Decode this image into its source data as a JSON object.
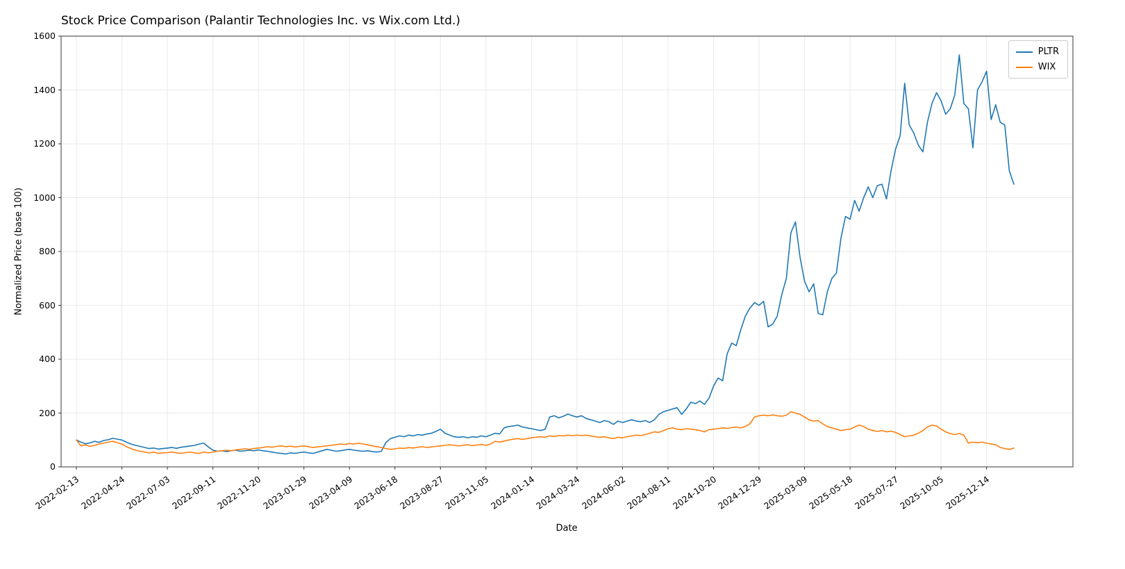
{
  "title": "Stock Price Comparison (Palantir Technologies Inc. vs Wix.com Ltd.)",
  "xlabel": "Date",
  "ylabel": "Normalized Price (base 100)",
  "legend": [
    {
      "label": "PLTR",
      "color": "#1f77b4"
    },
    {
      "label": "WIX",
      "color": "#ff7f0e"
    }
  ],
  "chart_data": {
    "type": "line",
    "title": "Stock Price Comparison (Palantir Technologies Inc. vs Wix.com Ltd.)",
    "xlabel": "Date",
    "ylabel": "Normalized Price (base 100)",
    "ylim": [
      0,
      1600
    ],
    "y_ticks": [
      0,
      200,
      400,
      600,
      800,
      1000,
      1200,
      1400,
      1600
    ],
    "grid": true,
    "legend_position": "upper right",
    "x_unit": "weekly samples, one point per week starting 2022-02-13",
    "samples_per_tick": 10,
    "x_tick_labels": [
      "2022-02-13",
      "2022-04-24",
      "2022-07-03",
      "2022-09-11",
      "2022-11-20",
      "2023-01-29",
      "2023-04-09",
      "2023-06-18",
      "2023-08-27",
      "2023-11-05",
      "2024-01-14",
      "2024-03-24",
      "2024-06-02",
      "2024-08-11",
      "2024-10-20",
      "2024-12-29",
      "2025-03-09",
      "2025-05-18",
      "2025-07-27",
      "2025-10-05",
      "2025-12-14"
    ],
    "series": [
      {
        "name": "PLTR",
        "color": "#1f77b4",
        "values": [
          100,
          92,
          86,
          89,
          95,
          91,
          98,
          101,
          106,
          103,
          100,
          92,
          85,
          80,
          76,
          72,
          68,
          70,
          66,
          68,
          70,
          72,
          69,
          73,
          75,
          78,
          80,
          85,
          88,
          74,
          62,
          58,
          60,
          57,
          60,
          62,
          58,
          60,
          62,
          60,
          63,
          60,
          58,
          55,
          52,
          50,
          48,
          52,
          50,
          53,
          55,
          52,
          50,
          55,
          60,
          65,
          62,
          58,
          60,
          63,
          65,
          62,
          60,
          58,
          60,
          57,
          55,
          58,
          90,
          105,
          110,
          115,
          112,
          118,
          115,
          120,
          118,
          122,
          125,
          132,
          140,
          125,
          118,
          112,
          110,
          112,
          108,
          112,
          110,
          115,
          112,
          118,
          125,
          122,
          145,
          150,
          152,
          155,
          148,
          145,
          142,
          138,
          135,
          140,
          185,
          190,
          182,
          188,
          196,
          190,
          185,
          190,
          180,
          175,
          170,
          165,
          172,
          168,
          158,
          170,
          165,
          170,
          175,
          170,
          168,
          172,
          165,
          175,
          195,
          205,
          210,
          215,
          220,
          195,
          215,
          240,
          235,
          245,
          232,
          255,
          300,
          330,
          320,
          420,
          460,
          450,
          510,
          560,
          590,
          610,
          600,
          615,
          520,
          530,
          560,
          640,
          700,
          870,
          910,
          780,
          690,
          650,
          680,
          570,
          565,
          650,
          700,
          720,
          850,
          930,
          920,
          990,
          950,
          1000,
          1040,
          1000,
          1045,
          1050,
          995,
          1100,
          1180,
          1230,
          1425,
          1270,
          1240,
          1195,
          1170,
          1280,
          1350,
          1390,
          1360,
          1310,
          1330,
          1380,
          1530,
          1350,
          1330,
          1185,
          1400,
          1430,
          1470,
          1290,
          1345,
          1280,
          1270,
          1100,
          1050
        ]
      },
      {
        "name": "WIX",
        "color": "#ff7f0e",
        "values": [
          100,
          78,
          82,
          76,
          80,
          85,
          88,
          92,
          95,
          90,
          85,
          75,
          68,
          62,
          58,
          55,
          52,
          55,
          50,
          52,
          53,
          55,
          52,
          50,
          53,
          55,
          52,
          50,
          55,
          52,
          55,
          58,
          60,
          62,
          60,
          63,
          65,
          67,
          65,
          68,
          70,
          72,
          75,
          73,
          76,
          78,
          75,
          77,
          74,
          76,
          78,
          75,
          72,
          74,
          76,
          78,
          80,
          82,
          85,
          83,
          87,
          85,
          88,
          85,
          82,
          78,
          75,
          72,
          68,
          65,
          67,
          70,
          68,
          72,
          70,
          73,
          75,
          72,
          74,
          76,
          78,
          80,
          82,
          80,
          78,
          80,
          82,
          79,
          81,
          83,
          80,
          85,
          95,
          92,
          96,
          100,
          103,
          105,
          102,
          105,
          108,
          110,
          112,
          110,
          115,
          113,
          116,
          115,
          118,
          116,
          118,
          116,
          118,
          115,
          112,
          110,
          112,
          108,
          105,
          110,
          108,
          112,
          115,
          118,
          116,
          120,
          125,
          130,
          128,
          135,
          142,
          145,
          140,
          138,
          142,
          140,
          138,
          135,
          130,
          138,
          140,
          142,
          145,
          143,
          146,
          148,
          145,
          150,
          160,
          185,
          190,
          192,
          190,
          193,
          190,
          188,
          192,
          205,
          200,
          195,
          185,
          175,
          170,
          172,
          160,
          150,
          145,
          140,
          135,
          138,
          140,
          148,
          155,
          150,
          140,
          135,
          132,
          135,
          130,
          133,
          128,
          120,
          112,
          115,
          118,
          125,
          135,
          148,
          155,
          152,
          140,
          130,
          124,
          120,
          124,
          118,
          88,
          92,
          90,
          92,
          88,
          85,
          82,
          72,
          68,
          65,
          70
        ]
      }
    ]
  }
}
